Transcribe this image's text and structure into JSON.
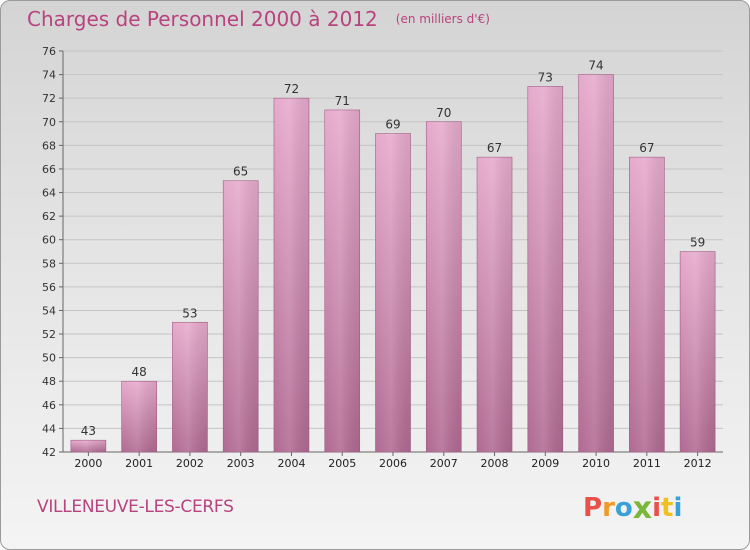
{
  "header": {
    "title": "Charges de Personnel 2000 à 2012",
    "unit": "(en milliers d'€)"
  },
  "footer": {
    "commune": "VILLENEUVE-LES-CERFS",
    "logo_letters": [
      "P",
      "r",
      "o",
      "x",
      "i",
      "t",
      "i"
    ],
    "logo_colors": [
      "#e8504a",
      "#f09a2a",
      "#3aa0d8",
      "#7ab83a",
      "#e8504a",
      "#f0c020",
      "#3aa0d8"
    ]
  },
  "colors": {
    "bar_top": "#e6aacc",
    "bar_bottom": "#b06a92",
    "text_accent": "#b8437e"
  },
  "chart_data": {
    "type": "bar",
    "title": "Charges de Personnel 2000 à 2012",
    "unit": "(en milliers d'€)",
    "categories": [
      "2000",
      "2001",
      "2002",
      "2003",
      "2004",
      "2005",
      "2006",
      "2007",
      "2008",
      "2009",
      "2010",
      "2011",
      "2012"
    ],
    "values": [
      43,
      48,
      53,
      65,
      72,
      71,
      69,
      70,
      67,
      73,
      74,
      67,
      59
    ],
    "ylim": [
      42,
      76
    ],
    "yticks": [
      42,
      44,
      46,
      48,
      50,
      52,
      54,
      56,
      58,
      60,
      62,
      64,
      66,
      68,
      70,
      72,
      74,
      76
    ],
    "grid": true,
    "legend": "none"
  }
}
